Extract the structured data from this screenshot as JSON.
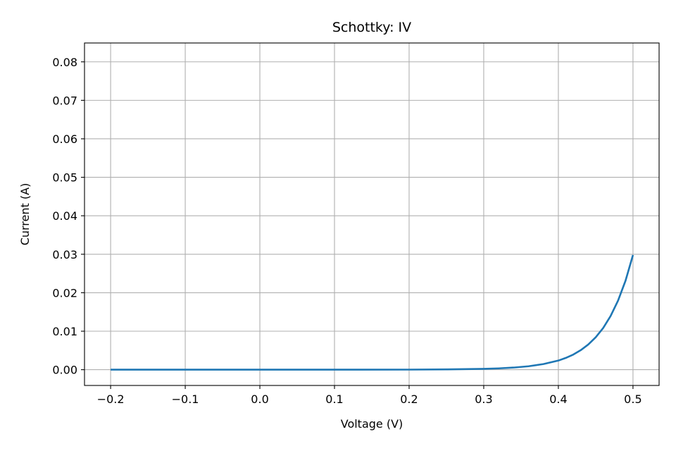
{
  "chart_data": {
    "type": "line",
    "title": "Schottky: IV",
    "xlabel": "Voltage (V)",
    "ylabel": "Current (A)",
    "xlim": [
      -0.235,
      0.535
    ],
    "ylim": [
      -0.0041,
      0.0849
    ],
    "xticks": [
      -0.2,
      -0.1,
      0.0,
      0.1,
      0.2,
      0.3,
      0.4,
      0.5
    ],
    "xtick_labels": [
      "−0.2",
      "−0.1",
      "0.0",
      "0.1",
      "0.2",
      "0.3",
      "0.4",
      "0.5"
    ],
    "yticks": [
      0.0,
      0.01,
      0.02,
      0.03,
      0.04,
      0.05,
      0.06,
      0.07,
      0.08
    ],
    "ytick_labels": [
      "0.00",
      "0.01",
      "0.02",
      "0.03",
      "0.04",
      "0.05",
      "0.06",
      "0.07",
      "0.08"
    ],
    "grid": true,
    "legend": "none",
    "series": [
      {
        "color": "#1f77b4",
        "x": [
          -0.2,
          -0.1,
          0.0,
          0.1,
          0.2,
          0.25,
          0.3,
          0.32,
          0.34,
          0.36,
          0.38,
          0.4,
          0.41,
          0.42,
          0.43,
          0.44,
          0.45,
          0.46,
          0.47,
          0.48,
          0.49,
          0.5
        ],
        "y": [
          0.0,
          0.0,
          0.0,
          0.0,
          2e-05,
          8e-05,
          0.00021,
          0.00034,
          0.00055,
          0.00089,
          0.00146,
          0.00237,
          0.00306,
          0.00393,
          0.00507,
          0.00653,
          0.0084,
          0.01082,
          0.01394,
          0.01795,
          0.02312,
          0.0298
        ]
      }
    ]
  }
}
